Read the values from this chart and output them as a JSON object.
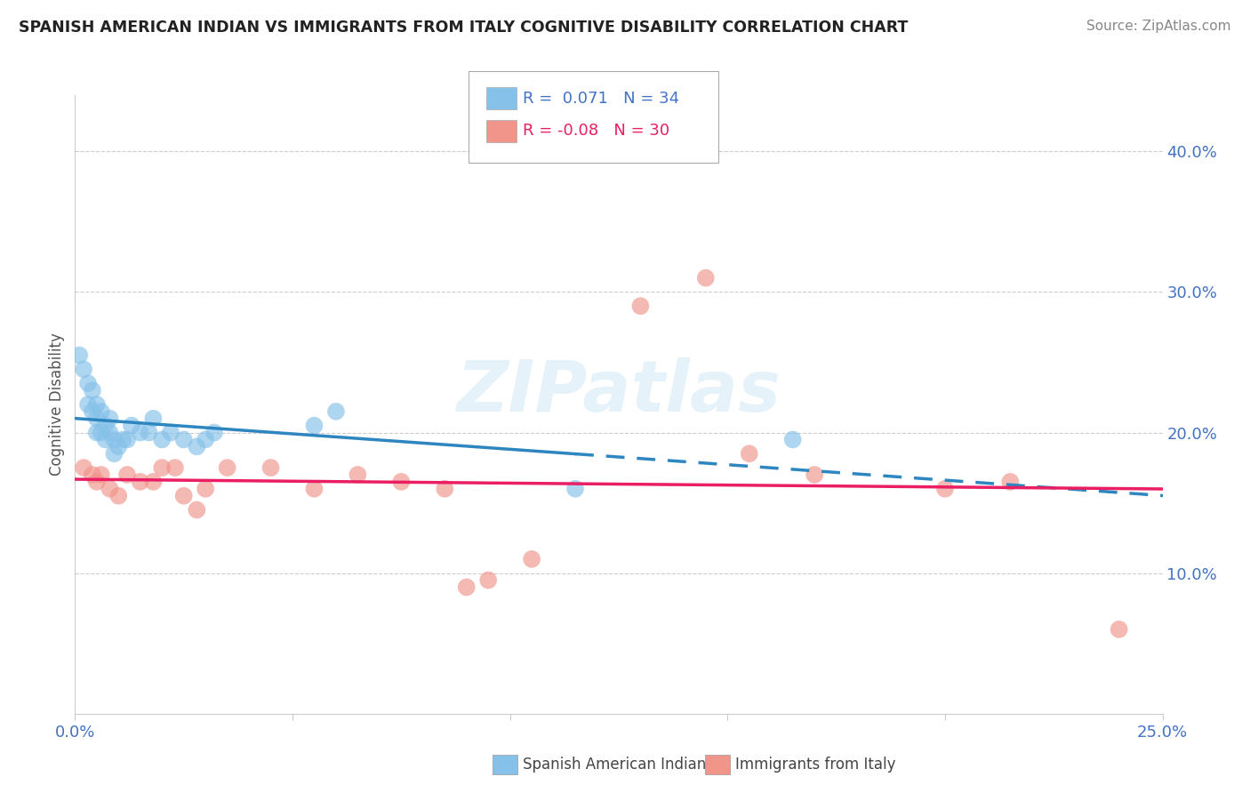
{
  "title": "SPANISH AMERICAN INDIAN VS IMMIGRANTS FROM ITALY COGNITIVE DISABILITY CORRELATION CHART",
  "source": "Source: ZipAtlas.com",
  "ylabel": "Cognitive Disability",
  "series1_label": "Spanish American Indians",
  "series2_label": "Immigrants from Italy",
  "series1_R": 0.071,
  "series1_N": 34,
  "series2_R": -0.08,
  "series2_N": 30,
  "series1_color": "#85C1E9",
  "series2_color": "#F1948A",
  "line1_color": "#2E86C1",
  "line2_color": "#E91E63",
  "xlim": [
    0.0,
    0.25
  ],
  "ylim": [
    0.0,
    0.44
  ],
  "xticks": [
    0.0,
    0.05,
    0.1,
    0.15,
    0.2,
    0.25
  ],
  "yticks_right": [
    0.1,
    0.2,
    0.3,
    0.4
  ],
  "ytick_labels_right": [
    "10.0%",
    "20.0%",
    "30.0%",
    "40.0%"
  ],
  "watermark": "ZIPatlas",
  "series1_x": [
    0.001,
    0.002,
    0.003,
    0.003,
    0.004,
    0.004,
    0.005,
    0.005,
    0.005,
    0.006,
    0.006,
    0.007,
    0.007,
    0.008,
    0.008,
    0.009,
    0.009,
    0.01,
    0.011,
    0.012,
    0.013,
    0.015,
    0.017,
    0.018,
    0.02,
    0.022,
    0.025,
    0.028,
    0.03,
    0.032,
    0.055,
    0.06,
    0.115,
    0.165
  ],
  "series1_y": [
    0.255,
    0.245,
    0.235,
    0.22,
    0.215,
    0.23,
    0.21,
    0.22,
    0.2,
    0.215,
    0.2,
    0.205,
    0.195,
    0.2,
    0.21,
    0.195,
    0.185,
    0.19,
    0.195,
    0.195,
    0.205,
    0.2,
    0.2,
    0.21,
    0.195,
    0.2,
    0.195,
    0.19,
    0.195,
    0.2,
    0.205,
    0.215,
    0.16,
    0.195
  ],
  "series2_x": [
    0.002,
    0.004,
    0.005,
    0.006,
    0.008,
    0.01,
    0.012,
    0.015,
    0.018,
    0.02,
    0.023,
    0.025,
    0.028,
    0.03,
    0.035,
    0.045,
    0.055,
    0.065,
    0.075,
    0.085,
    0.09,
    0.095,
    0.105,
    0.13,
    0.145,
    0.155,
    0.17,
    0.2,
    0.215,
    0.24
  ],
  "series2_y": [
    0.175,
    0.17,
    0.165,
    0.17,
    0.16,
    0.155,
    0.17,
    0.165,
    0.165,
    0.175,
    0.175,
    0.155,
    0.145,
    0.16,
    0.175,
    0.175,
    0.16,
    0.17,
    0.165,
    0.16,
    0.09,
    0.095,
    0.11,
    0.29,
    0.31,
    0.185,
    0.17,
    0.16,
    0.165,
    0.06
  ]
}
